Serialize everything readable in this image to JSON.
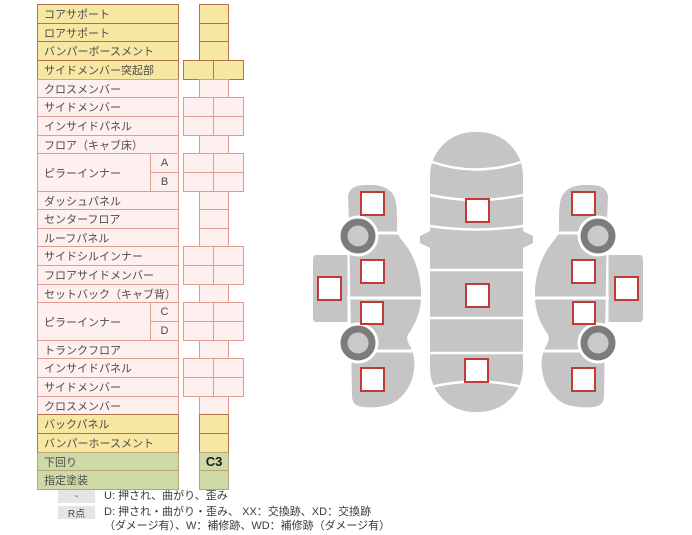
{
  "colors": {
    "yellow-bg": "#f6e7a2",
    "yellow-border": "#b3744c",
    "pink-bg": "#fdf0ef",
    "pink-border": "#e19a94",
    "green-bg": "#cddaa5",
    "green-border": "#bda37c",
    "car-gray": "#c5c5c5",
    "wheel-dark": "#7c7c7c",
    "wheel-light": "#c9c9c9",
    "marker-red": "#c13b36"
  },
  "panel": {
    "rows": [
      {
        "label": "コアサポート",
        "color": "yellow",
        "cells": 1
      },
      {
        "label": "ロアサポート",
        "color": "yellow",
        "cells": 1
      },
      {
        "label": "バンパーボースメント",
        "color": "yellow",
        "cells": 1
      },
      {
        "label": "サイドメンバー突起部",
        "color": "yellow",
        "cells": 2
      },
      {
        "label": "クロスメンバー",
        "color": "pink",
        "cells": 1
      },
      {
        "label": "サイドメンバー",
        "color": "pink",
        "cells": 2
      },
      {
        "label": "インサイドパネル",
        "color": "pink",
        "cells": 2
      },
      {
        "label": "フロア（キャブ床）",
        "color": "pink",
        "cells": 1
      },
      {
        "label": "ピラーインナー",
        "sub": "A",
        "color": "pink",
        "cells": 2
      },
      {
        "label": "",
        "sub": "B",
        "color": "pink",
        "cells": 2
      },
      {
        "label": "ダッシュパネル",
        "color": "pink",
        "cells": 1
      },
      {
        "label": "センターフロア",
        "color": "pink",
        "cells": 1
      },
      {
        "label": "ルーフパネル",
        "color": "pink",
        "cells": 1
      },
      {
        "label": "サイドシルインナー",
        "color": "pink",
        "cells": 2
      },
      {
        "label": "フロアサイドメンバー",
        "color": "pink",
        "cells": 2
      },
      {
        "label": "セットバック（キャブ背）",
        "color": "pink",
        "cells": 1
      },
      {
        "label": "ピラーインナー",
        "sub": "C",
        "color": "pink",
        "cells": 2
      },
      {
        "label": "",
        "sub": "D",
        "color": "pink",
        "cells": 2
      },
      {
        "label": "トランクフロア",
        "color": "pink",
        "cells": 1
      },
      {
        "label": "インサイドパネル",
        "color": "pink",
        "cells": 2
      },
      {
        "label": "サイドメンバー",
        "color": "pink",
        "cells": 2
      },
      {
        "label": "クロスメンバー",
        "color": "pink",
        "cells": 1
      },
      {
        "label": "バックパネル",
        "color": "yellow",
        "cells": 1
      },
      {
        "label": "バンパーホースメント",
        "color": "yellow",
        "cells": 1
      },
      {
        "label": "下回り",
        "color": "green",
        "cells": 1,
        "value": "C3"
      },
      {
        "label": "指定塗装",
        "color": "green",
        "cells": 1
      }
    ]
  },
  "legend": {
    "items": [
      {
        "badge": "-",
        "text": "U: 押され、曲がり、歪み"
      },
      {
        "badge": "R点",
        "text": "D: 押され・曲がり・歪み、 XX：交換跡、XD：交換跡",
        "text2": "（ダメージ有）、W：補修跡、WD：補修跡（ダメージ有）"
      }
    ]
  }
}
